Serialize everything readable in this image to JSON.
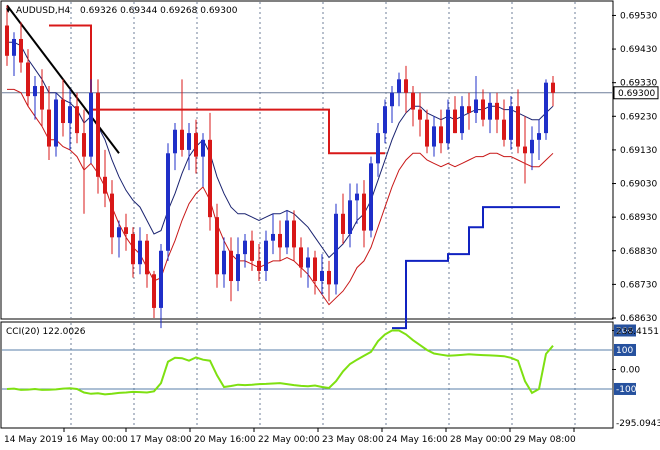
{
  "chart_data": {
    "type": "candlestick",
    "symbol": "AUDUSD,H4",
    "ohlc_header": "0.69326 0.69344 0.69268 0.69300",
    "current_price": "0.69300",
    "price_range": [
      0.6863,
      0.6957
    ],
    "price_ticks": [
      "0.69530",
      "0.69430",
      "0.69330",
      "0.69230",
      "0.69130",
      "0.69030",
      "0.68930",
      "0.68830",
      "0.68730",
      "0.68630"
    ],
    "x_labels": [
      "14 May 2019",
      "16 May 00:00",
      "17 May 08:00",
      "20 May 16:00",
      "22 May 00:00",
      "23 May 08:00",
      "24 May 16:00",
      "28 May 00:00",
      "29 May 08:00"
    ],
    "candles": [
      {
        "o": 0.695,
        "h": 0.6956,
        "l": 0.6938,
        "c": 0.6941
      },
      {
        "o": 0.6941,
        "h": 0.6948,
        "l": 0.6935,
        "c": 0.6946
      },
      {
        "o": 0.6946,
        "h": 0.6951,
        "l": 0.6936,
        "c": 0.6939
      },
      {
        "o": 0.6939,
        "h": 0.6943,
        "l": 0.6926,
        "c": 0.6929
      },
      {
        "o": 0.6929,
        "h": 0.6935,
        "l": 0.6922,
        "c": 0.6932
      },
      {
        "o": 0.6932,
        "h": 0.6937,
        "l": 0.692,
        "c": 0.6925
      },
      {
        "o": 0.6925,
        "h": 0.6932,
        "l": 0.691,
        "c": 0.6914
      },
      {
        "o": 0.6914,
        "h": 0.693,
        "l": 0.6911,
        "c": 0.6928
      },
      {
        "o": 0.6928,
        "h": 0.6934,
        "l": 0.6917,
        "c": 0.6921
      },
      {
        "o": 0.6921,
        "h": 0.6931,
        "l": 0.6913,
        "c": 0.6926
      },
      {
        "o": 0.6926,
        "h": 0.693,
        "l": 0.6915,
        "c": 0.6918
      },
      {
        "o": 0.6918,
        "h": 0.6925,
        "l": 0.6894,
        "c": 0.6911
      },
      {
        "o": 0.6911,
        "h": 0.6934,
        "l": 0.6909,
        "c": 0.693
      },
      {
        "o": 0.693,
        "h": 0.6934,
        "l": 0.69,
        "c": 0.6905
      },
      {
        "o": 0.6905,
        "h": 0.6913,
        "l": 0.6896,
        "c": 0.69
      },
      {
        "o": 0.69,
        "h": 0.6904,
        "l": 0.6882,
        "c": 0.6887
      },
      {
        "o": 0.6887,
        "h": 0.6892,
        "l": 0.6881,
        "c": 0.689
      },
      {
        "o": 0.689,
        "h": 0.6894,
        "l": 0.6883,
        "c": 0.6888
      },
      {
        "o": 0.6888,
        "h": 0.689,
        "l": 0.6875,
        "c": 0.6879
      },
      {
        "o": 0.6879,
        "h": 0.689,
        "l": 0.6876,
        "c": 0.6886
      },
      {
        "o": 0.6886,
        "h": 0.6888,
        "l": 0.6872,
        "c": 0.6876
      },
      {
        "o": 0.6876,
        "h": 0.6877,
        "l": 0.6863,
        "c": 0.6866
      },
      {
        "o": 0.6866,
        "h": 0.6885,
        "l": 0.686,
        "c": 0.6883
      },
      {
        "o": 0.6883,
        "h": 0.6915,
        "l": 0.688,
        "c": 0.6912
      },
      {
        "o": 0.6912,
        "h": 0.6921,
        "l": 0.6907,
        "c": 0.6919
      },
      {
        "o": 0.6919,
        "h": 0.6934,
        "l": 0.6911,
        "c": 0.6913
      },
      {
        "o": 0.6913,
        "h": 0.6921,
        "l": 0.6907,
        "c": 0.6918
      },
      {
        "o": 0.6918,
        "h": 0.6922,
        "l": 0.6906,
        "c": 0.6911
      },
      {
        "o": 0.6911,
        "h": 0.6918,
        "l": 0.6902,
        "c": 0.6916
      },
      {
        "o": 0.6916,
        "h": 0.6924,
        "l": 0.6889,
        "c": 0.6893
      },
      {
        "o": 0.6893,
        "h": 0.6897,
        "l": 0.6872,
        "c": 0.6876
      },
      {
        "o": 0.6876,
        "h": 0.6887,
        "l": 0.6872,
        "c": 0.6883
      },
      {
        "o": 0.6883,
        "h": 0.6887,
        "l": 0.6868,
        "c": 0.6874
      },
      {
        "o": 0.6874,
        "h": 0.6887,
        "l": 0.6871,
        "c": 0.6882
      },
      {
        "o": 0.6882,
        "h": 0.6888,
        "l": 0.6878,
        "c": 0.6886
      },
      {
        "o": 0.6886,
        "h": 0.6889,
        "l": 0.6877,
        "c": 0.688
      },
      {
        "o": 0.688,
        "h": 0.6885,
        "l": 0.6874,
        "c": 0.6877
      },
      {
        "o": 0.6877,
        "h": 0.6889,
        "l": 0.6874,
        "c": 0.6886
      },
      {
        "o": 0.6886,
        "h": 0.6894,
        "l": 0.6882,
        "c": 0.6888
      },
      {
        "o": 0.6888,
        "h": 0.6892,
        "l": 0.688,
        "c": 0.6884
      },
      {
        "o": 0.6884,
        "h": 0.6895,
        "l": 0.6882,
        "c": 0.6892
      },
      {
        "o": 0.6892,
        "h": 0.6895,
        "l": 0.688,
        "c": 0.6884
      },
      {
        "o": 0.6884,
        "h": 0.6887,
        "l": 0.6875,
        "c": 0.6878
      },
      {
        "o": 0.6878,
        "h": 0.6884,
        "l": 0.6872,
        "c": 0.6881
      },
      {
        "o": 0.6881,
        "h": 0.6883,
        "l": 0.687,
        "c": 0.6874
      },
      {
        "o": 0.6874,
        "h": 0.6882,
        "l": 0.687,
        "c": 0.6877
      },
      {
        "o": 0.6877,
        "h": 0.688,
        "l": 0.6868,
        "c": 0.6873
      },
      {
        "o": 0.6873,
        "h": 0.6897,
        "l": 0.687,
        "c": 0.6894
      },
      {
        "o": 0.6894,
        "h": 0.69,
        "l": 0.6885,
        "c": 0.6888
      },
      {
        "o": 0.6888,
        "h": 0.6903,
        "l": 0.6884,
        "c": 0.6898
      },
      {
        "o": 0.6898,
        "h": 0.6903,
        "l": 0.6891,
        "c": 0.69
      },
      {
        "o": 0.69,
        "h": 0.6904,
        "l": 0.6884,
        "c": 0.6889
      },
      {
        "o": 0.6889,
        "h": 0.6911,
        "l": 0.6887,
        "c": 0.6909
      },
      {
        "o": 0.6909,
        "h": 0.6921,
        "l": 0.6905,
        "c": 0.6918
      },
      {
        "o": 0.6918,
        "h": 0.6928,
        "l": 0.6915,
        "c": 0.6926
      },
      {
        "o": 0.6926,
        "h": 0.6932,
        "l": 0.6921,
        "c": 0.693
      },
      {
        "o": 0.693,
        "h": 0.6936,
        "l": 0.6926,
        "c": 0.6934
      },
      {
        "o": 0.6934,
        "h": 0.6938,
        "l": 0.6924,
        "c": 0.693
      },
      {
        "o": 0.693,
        "h": 0.6932,
        "l": 0.692,
        "c": 0.6925
      },
      {
        "o": 0.6925,
        "h": 0.693,
        "l": 0.6917,
        "c": 0.6922
      },
      {
        "o": 0.6922,
        "h": 0.6925,
        "l": 0.6912,
        "c": 0.6914
      },
      {
        "o": 0.6914,
        "h": 0.6923,
        "l": 0.6911,
        "c": 0.692
      },
      {
        "o": 0.692,
        "h": 0.6925,
        "l": 0.6912,
        "c": 0.6915
      },
      {
        "o": 0.6915,
        "h": 0.6928,
        "l": 0.6913,
        "c": 0.6925
      },
      {
        "o": 0.6925,
        "h": 0.6929,
        "l": 0.6918,
        "c": 0.6918
      },
      {
        "o": 0.6918,
        "h": 0.6929,
        "l": 0.6916,
        "c": 0.6926
      },
      {
        "o": 0.6926,
        "h": 0.693,
        "l": 0.6919,
        "c": 0.6924
      },
      {
        "o": 0.6924,
        "h": 0.6935,
        "l": 0.6921,
        "c": 0.6928
      },
      {
        "o": 0.6928,
        "h": 0.6931,
        "l": 0.692,
        "c": 0.6922
      },
      {
        "o": 0.6922,
        "h": 0.693,
        "l": 0.6918,
        "c": 0.6927
      },
      {
        "o": 0.6927,
        "h": 0.693,
        "l": 0.6918,
        "c": 0.6922
      },
      {
        "o": 0.6922,
        "h": 0.6928,
        "l": 0.6914,
        "c": 0.6916
      },
      {
        "o": 0.6916,
        "h": 0.6929,
        "l": 0.6913,
        "c": 0.6926
      },
      {
        "o": 0.6926,
        "h": 0.6931,
        "l": 0.6912,
        "c": 0.6914
      },
      {
        "o": 0.6914,
        "h": 0.6923,
        "l": 0.6903,
        "c": 0.6912
      },
      {
        "o": 0.6912,
        "h": 0.692,
        "l": 0.6907,
        "c": 0.6916
      },
      {
        "o": 0.6916,
        "h": 0.6922,
        "l": 0.691,
        "c": 0.6918
      },
      {
        "o": 0.6918,
        "h": 0.6934,
        "l": 0.6916,
        "c": 0.6933
      },
      {
        "o": 0.6933,
        "h": 0.6935,
        "l": 0.6926,
        "c": 0.693
      }
    ],
    "envelope_upper": [
      0.6945,
      0.6945,
      0.6944,
      0.694,
      0.6937,
      0.6934,
      0.693,
      0.693,
      0.6928,
      0.6927,
      0.6925,
      0.6921,
      0.6923,
      0.692,
      0.6916,
      0.691,
      0.6905,
      0.6901,
      0.6898,
      0.6896,
      0.6892,
      0.6888,
      0.6889,
      0.6895,
      0.69,
      0.6906,
      0.6911,
      0.6914,
      0.6916,
      0.6912,
      0.6905,
      0.69,
      0.6896,
      0.6894,
      0.6894,
      0.6893,
      0.6892,
      0.6893,
      0.6894,
      0.6894,
      0.6895,
      0.6894,
      0.6892,
      0.689,
      0.6887,
      0.6884,
      0.6881,
      0.6883,
      0.6885,
      0.6888,
      0.6892,
      0.6894,
      0.6898,
      0.6904,
      0.691,
      0.6916,
      0.6921,
      0.6924,
      0.6926,
      0.6926,
      0.6924,
      0.6923,
      0.6922,
      0.6923,
      0.6922,
      0.6923,
      0.6924,
      0.6925,
      0.6925,
      0.6926,
      0.6926,
      0.6925,
      0.6925,
      0.6924,
      0.6923,
      0.6922,
      0.6922,
      0.6924,
      0.6926
    ],
    "envelope_lower": [
      0.6931,
      0.6931,
      0.693,
      0.6926,
      0.6923,
      0.692,
      0.6916,
      0.6916,
      0.6914,
      0.6913,
      0.6911,
      0.6907,
      0.6909,
      0.6906,
      0.6902,
      0.6896,
      0.6891,
      0.6887,
      0.6884,
      0.6882,
      0.6878,
      0.6874,
      0.6875,
      0.6881,
      0.6886,
      0.6892,
      0.6897,
      0.69,
      0.6902,
      0.6898,
      0.6891,
      0.6886,
      0.6882,
      0.688,
      0.688,
      0.6879,
      0.6878,
      0.6879,
      0.688,
      0.688,
      0.6881,
      0.688,
      0.6878,
      0.6876,
      0.6873,
      0.687,
      0.6867,
      0.6869,
      0.6871,
      0.6874,
      0.6878,
      0.688,
      0.6884,
      0.689,
      0.6896,
      0.6902,
      0.6907,
      0.691,
      0.6912,
      0.6912,
      0.691,
      0.6909,
      0.6908,
      0.6909,
      0.6908,
      0.6909,
      0.691,
      0.6911,
      0.6911,
      0.6912,
      0.6912,
      0.6911,
      0.6911,
      0.691,
      0.6909,
      0.6908,
      0.6908,
      0.691,
      0.6912
    ],
    "step_resistance": [
      {
        "from": 6,
        "to": 12,
        "level": 0.695
      },
      {
        "from": 12,
        "to": 18,
        "level": 0.6925
      },
      {
        "from": 18,
        "to": 46,
        "level": 0.6925
      },
      {
        "from": 46,
        "to": 54,
        "level": 0.6912
      }
    ],
    "step_support": [
      {
        "from": 55,
        "to": 57,
        "level": 0.686
      },
      {
        "from": 57,
        "to": 63,
        "level": 0.688
      },
      {
        "from": 63,
        "to": 66,
        "level": 0.6882
      },
      {
        "from": 66,
        "to": 68,
        "level": 0.689
      },
      {
        "from": 68,
        "to": 79,
        "level": 0.6896
      }
    ],
    "trendline": {
      "x1": 0,
      "y1": 0.6956,
      "x2": 16,
      "y2": 0.6912
    },
    "hline_price": 0.693,
    "cci": {
      "label": "CCI(20) 122.0026",
      "range": [
        -295.0943,
        238.4151
      ],
      "range_labels": [
        "238.4151",
        "-295.0943"
      ],
      "levels": [
        "200",
        "100",
        "0.00",
        "-100"
      ],
      "values": [
        -100,
        -98,
        -105,
        -103,
        -100,
        -105,
        -104,
        -102,
        -98,
        -96,
        -100,
        -118,
        -125,
        -122,
        -128,
        -125,
        -120,
        -118,
        -115,
        -116,
        -118,
        -112,
        -70,
        40,
        60,
        58,
        45,
        62,
        50,
        45,
        -30,
        -90,
        -85,
        -78,
        -80,
        -78,
        -75,
        -74,
        -72,
        -70,
        -75,
        -80,
        -84,
        -86,
        -82,
        -90,
        -95,
        -60,
        -10,
        28,
        50,
        70,
        90,
        145,
        180,
        200,
        200,
        180,
        150,
        125,
        100,
        82,
        76,
        70,
        72,
        75,
        78,
        76,
        74,
        72,
        70,
        68,
        60,
        45,
        -60,
        -120,
        -100,
        80,
        122
      ]
    },
    "colors": {
      "bull": "#1f2fc8",
      "bear": "#d81818",
      "step_res": "#d81818",
      "step_sup": "#1022c0",
      "env_upper": "#1a2370",
      "env_lower": "#c81818",
      "cci_line": "#7ee011",
      "level_line": "#5a7fa8",
      "grid": "#6f7f9a"
    }
  }
}
